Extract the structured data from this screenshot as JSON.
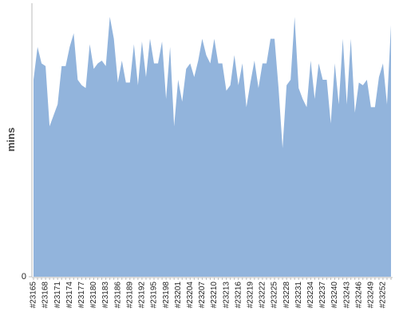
{
  "chart_data": {
    "type": "area",
    "y_label": "mins",
    "color": "#92b4dc",
    "categories": [
      "#23165",
      null,
      null,
      "#23168",
      null,
      null,
      "#23171",
      null,
      null,
      "#23174",
      null,
      null,
      "#23177",
      null,
      null,
      "#23180",
      null,
      null,
      "#23183",
      null,
      null,
      "#23186",
      null,
      null,
      "#23189",
      null,
      null,
      "#23192",
      null,
      null,
      "#23195",
      null,
      null,
      "#23198",
      null,
      null,
      "#23201",
      null,
      null,
      "#23204",
      null,
      null,
      "#23207",
      null,
      null,
      "#23210",
      null,
      null,
      "#23213",
      null,
      null,
      "#23216",
      null,
      null,
      "#23219",
      null,
      null,
      "#23222",
      null,
      null,
      "#23225",
      null,
      null,
      "#23228",
      null,
      null,
      "#23231",
      null,
      null,
      "#23234",
      null,
      null,
      "#23237",
      null,
      null,
      "#23240",
      null,
      null,
      "#23243",
      null,
      null,
      "#23246",
      null,
      null,
      "#23249",
      null,
      null,
      "#23252",
      null,
      null
    ],
    "values": [
      72,
      84,
      78,
      77,
      55,
      59,
      63,
      77,
      77,
      84,
      89,
      72,
      70,
      69,
      85,
      76,
      78,
      79,
      77,
      95,
      87,
      71,
      79,
      71,
      71,
      85,
      70,
      86,
      73,
      87,
      78,
      78,
      86,
      65,
      84,
      55,
      72,
      64,
      76,
      78,
      73,
      79,
      87,
      81,
      78,
      87,
      78,
      78,
      68,
      70,
      81,
      70,
      78,
      62,
      71,
      79,
      69,
      78,
      78,
      87,
      87,
      69,
      47,
      70,
      72,
      95,
      69,
      65,
      62,
      79,
      65,
      78,
      72,
      72,
      56,
      78,
      63,
      87,
      63,
      87,
      60,
      71,
      70,
      72,
      62,
      62,
      73,
      78,
      63,
      92
    ],
    "ylim": [
      0,
      100
    ],
    "yticks": [
      0
    ]
  }
}
